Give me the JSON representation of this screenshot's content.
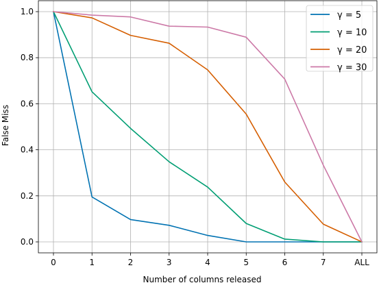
{
  "chart_data": {
    "type": "line",
    "title": "",
    "xlabel": "Number of columns released",
    "ylabel": "False Miss",
    "categories": [
      "0",
      "1",
      "2",
      "3",
      "4",
      "5",
      "6",
      "7",
      "ALL"
    ],
    "ylim": [
      0,
      1.0
    ],
    "yticks": [
      "0.0",
      "0.2",
      "0.4",
      "0.6",
      "0.8",
      "1.0"
    ],
    "grid": true,
    "legend_position": "top-right",
    "series": [
      {
        "name": "γ = 5",
        "color": "#0072b2",
        "values": [
          1.0,
          0.195,
          0.097,
          0.072,
          0.028,
          0.0,
          0.0,
          0.0,
          0.0
        ]
      },
      {
        "name": "γ = 10",
        "color": "#009e73",
        "values": [
          1.0,
          0.652,
          0.493,
          0.348,
          0.238,
          0.08,
          0.012,
          0.0,
          0.0
        ]
      },
      {
        "name": "γ = 20",
        "color": "#d55e00",
        "values": [
          1.0,
          0.973,
          0.897,
          0.863,
          0.747,
          0.555,
          0.26,
          0.077,
          0.0
        ]
      },
      {
        "name": "γ = 30",
        "color": "#cc79a7",
        "values": [
          1.0,
          0.985,
          0.977,
          0.937,
          0.933,
          0.889,
          0.707,
          0.333,
          0.0
        ]
      }
    ]
  }
}
